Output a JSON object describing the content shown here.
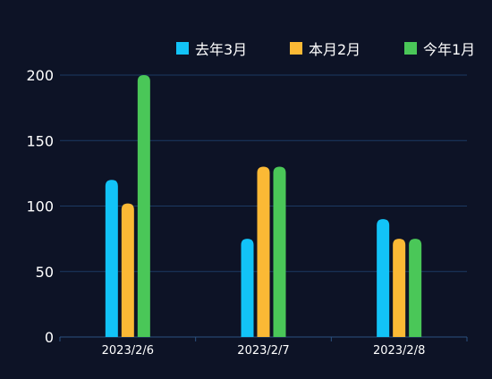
{
  "chart_data": {
    "type": "bar",
    "categories": [
      "2023/2/6",
      "2023/2/7",
      "2023/2/8"
    ],
    "series": [
      {
        "name": "去年3月",
        "color": "#12c3f7",
        "values": [
          120,
          75,
          90
        ]
      },
      {
        "name": "本月2月",
        "color": "#fbb935",
        "values": [
          102,
          130,
          75
        ]
      },
      {
        "name": "今年1月",
        "color": "#4ac758",
        "values": [
          200,
          130,
          75
        ]
      }
    ],
    "yticks": [
      0,
      50,
      100,
      150,
      200
    ],
    "ylim": [
      0,
      200
    ],
    "grid": true,
    "legend_position": "top-right",
    "colors": {
      "background": "#0d1326",
      "grid": "#1c3a63",
      "axis": "#2c5280",
      "text": "#ffffff"
    }
  }
}
